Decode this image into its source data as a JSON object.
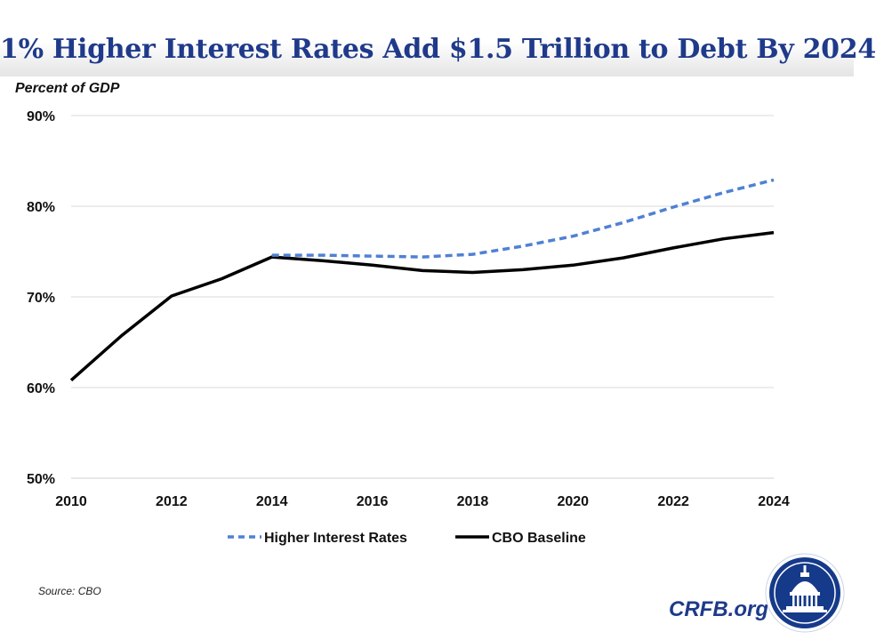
{
  "title": "1% Higher Interest Rates Add $1.5 Trillion to Debt By 2024",
  "source": "Source: CBO",
  "organization": "CRFB.org",
  "chart_data": {
    "type": "line",
    "ylabel": "Percent of GDP",
    "xlabel": "",
    "x_tick_labels": [
      "2010",
      "2012",
      "2014",
      "2016",
      "2018",
      "2020",
      "2022",
      "2024"
    ],
    "y_tick_labels": [
      "90%",
      "80%",
      "70%",
      "60%",
      "50%"
    ],
    "xlim": [
      2010,
      2024
    ],
    "ylim": [
      50,
      90
    ],
    "y_ticks": [
      90,
      80,
      70,
      60,
      50
    ],
    "grid": "horizontal",
    "legend": "bottom",
    "series": [
      {
        "name": "Higher Interest Rates",
        "color": "#4f81d4",
        "style": "dashed",
        "x": [
          2014,
          2015,
          2016,
          2017,
          2018,
          2019,
          2020,
          2021,
          2022,
          2023,
          2024
        ],
        "values": [
          74.6,
          74.6,
          74.5,
          74.4,
          74.7,
          75.6,
          76.7,
          78.2,
          79.9,
          81.5,
          82.9
        ]
      },
      {
        "name": "CBO Baseline",
        "color": "#000000",
        "style": "solid",
        "x": [
          2010,
          2011,
          2012,
          2013,
          2014,
          2015,
          2016,
          2017,
          2018,
          2019,
          2020,
          2021,
          2022,
          2023,
          2024
        ],
        "values": [
          60.8,
          65.7,
          70.1,
          72.0,
          74.4,
          74.0,
          73.5,
          72.9,
          72.7,
          73.0,
          73.5,
          74.3,
          75.4,
          76.4,
          77.1
        ]
      }
    ]
  }
}
